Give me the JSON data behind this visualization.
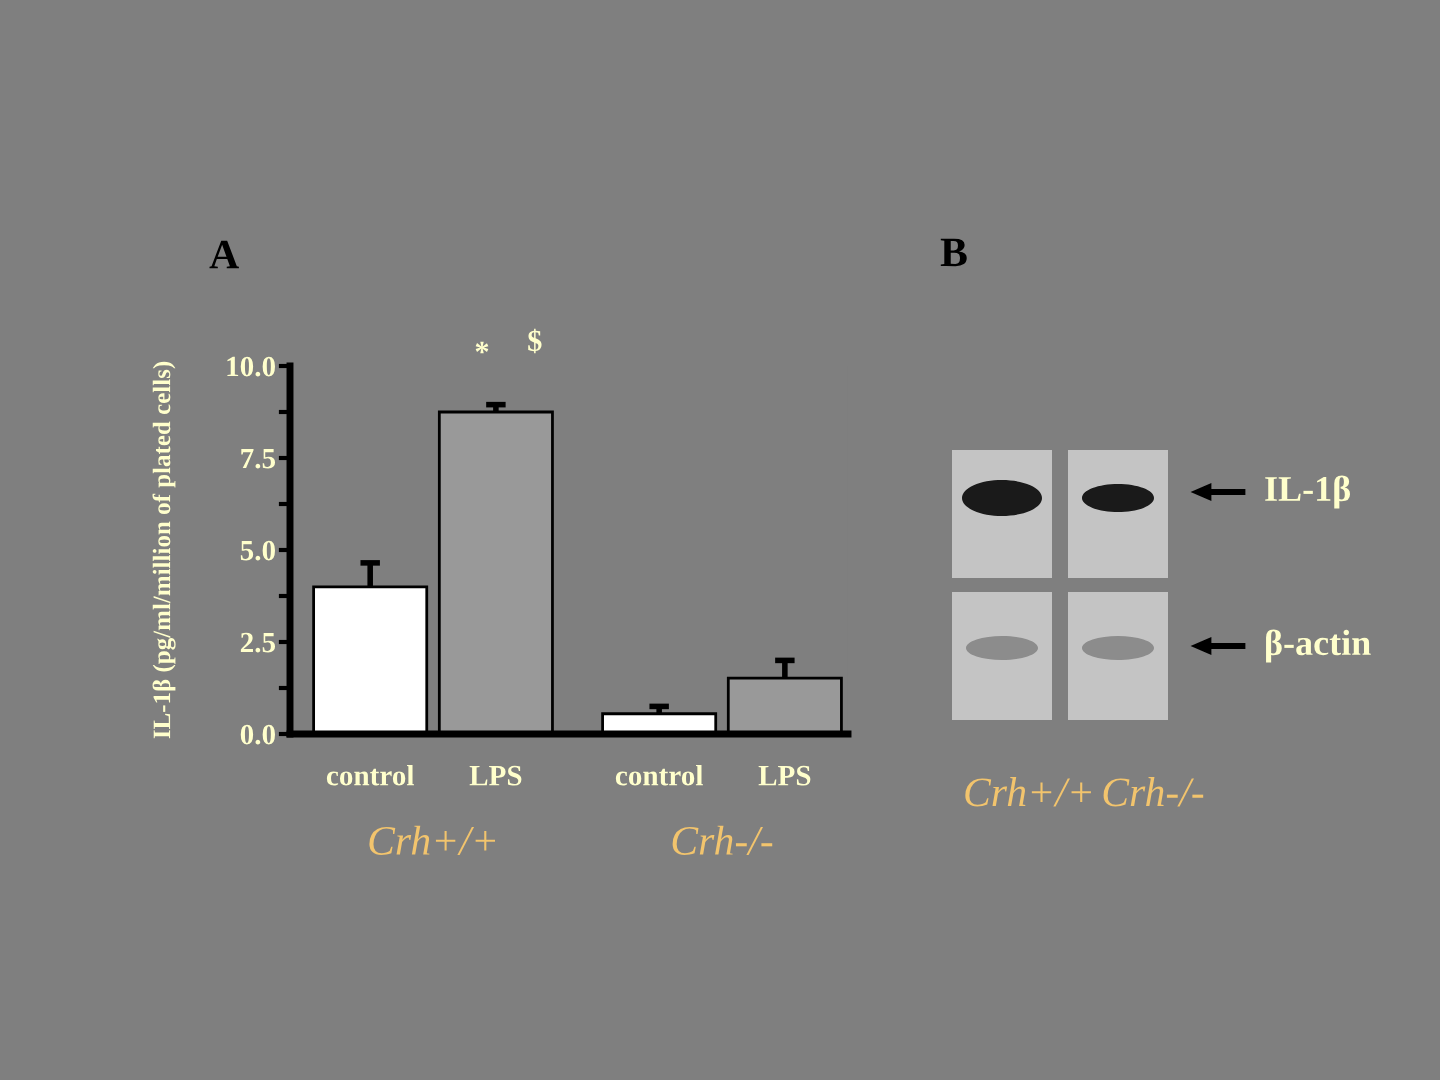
{
  "chart_data": [
    {
      "type": "bar",
      "title": "A",
      "ylabel": "IL-1β (pg/ml/million of plated cells)",
      "categories": [
        "Crh+/+",
        "Crh-/-"
      ],
      "series": [
        {
          "name": "control",
          "color": "#ffffff",
          "values": [
            4.0,
            0.55
          ],
          "errors": [
            [
              4.0,
              4.65
            ],
            [
              0.55,
              0.75
            ]
          ]
        },
        {
          "name": "LPS",
          "color": "#999999",
          "values": [
            8.75,
            1.52
          ],
          "errors": [
            [
              8.75,
              8.95
            ],
            [
              1.52,
              2.0
            ]
          ]
        }
      ],
      "ylim": [
        0,
        10
      ],
      "yticks": [
        {
          "value": 0,
          "label": "0.0"
        },
        {
          "value": 1.25,
          "label": null
        },
        2.5,
        {
          "value": 3.75,
          "label": null
        },
        {
          "value": 5,
          "label": "5.0"
        },
        {
          "value": 6.25,
          "label": null
        },
        7.5,
        {
          "value": 8.75,
          "label": null
        },
        {
          "value": 10,
          "label": "10.0"
        }
      ],
      "annotations": [
        "*",
        "$"
      ]
    },
    {
      "type": "other",
      "title": "B",
      "annotations": [
        "IL-1β",
        "β-actin",
        "Crh+/+",
        "Crh-/-"
      ]
    }
  ]
}
